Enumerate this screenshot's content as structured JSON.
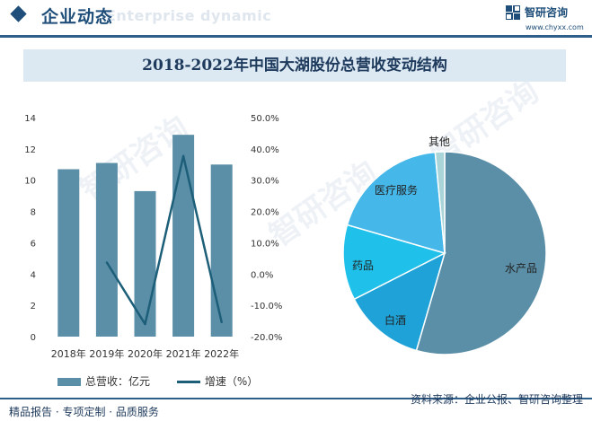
{
  "header": {
    "title": "企业动态",
    "subtitle_en": "Enterprise dynamic",
    "brand": "智研咨询",
    "brand_url": "www.chyxx.com"
  },
  "chart_title": "2018-2022年中国大湖股份总营收变动结构",
  "footer": {
    "left": "精品报告 · 专项定制 · 品质服务",
    "right": "资料来源：企业公报、智研咨询整理"
  },
  "legend": {
    "bar_label": "总营收：亿元",
    "line_label": "增速（%）"
  },
  "watermark": "智研咨询",
  "colors": {
    "bar": "#5b8fa8",
    "line": "#1d5e78",
    "pie": [
      "#5b8fa8",
      "#1ea2d8",
      "#1fc1ea",
      "#46b7e9",
      "#a9d5d8"
    ]
  },
  "chart_data": [
    {
      "type": "bar",
      "title": "2018-2022年中国大湖股份总营收变动结构",
      "categories": [
        "2018年",
        "2019年",
        "2020年",
        "2021年",
        "2022年"
      ],
      "series": [
        {
          "name": "总营收：亿元",
          "type": "bar",
          "axis": "left",
          "values": [
            10.7,
            11.1,
            9.3,
            12.9,
            11.0
          ]
        },
        {
          "name": "增速（%）",
          "type": "line",
          "axis": "right",
          "values": [
            null,
            3.7,
            -16.0,
            37.7,
            -15.4
          ]
        }
      ],
      "y_left": {
        "min": 0,
        "max": 14,
        "ticks": [
          "0",
          "2",
          "4",
          "6",
          "8",
          "10",
          "12",
          "14"
        ]
      },
      "y_right": {
        "min": -20,
        "max": 50,
        "ticks": [
          "-20.0%",
          "-10.0%",
          "0.0%",
          "10.0%",
          "20.0%",
          "30.0%",
          "40.0%",
          "50.0%"
        ]
      }
    },
    {
      "type": "pie",
      "slices": [
        {
          "label": "水产品",
          "value": 54.5
        },
        {
          "label": "白酒",
          "value": 13.0
        },
        {
          "label": "药品",
          "value": 12.0
        },
        {
          "label": "医疗服务",
          "value": 19.0
        },
        {
          "label": "其他",
          "value": 1.5
        }
      ]
    }
  ]
}
